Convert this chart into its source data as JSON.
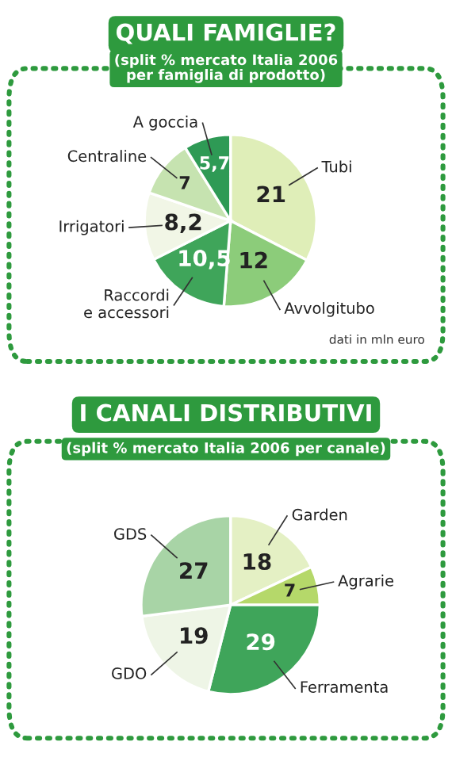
{
  "chart_data": [
    {
      "type": "pie",
      "title": "QUALI FAMIGLIE?",
      "subtitle": "(split % mercato Italia 2006\nper famiglia di prodotto)",
      "categories": [
        "Tubi",
        "Avvolgitubo",
        "Raccordi\ne accessori",
        "Irrigatori",
        "Centraline",
        "A goccia"
      ],
      "values": [
        21,
        12,
        10.5,
        8.2,
        7,
        5.7
      ],
      "value_labels": [
        "21",
        "12",
        "10,5",
        "8,2",
        "7",
        "5,7"
      ],
      "colors": [
        "#dfeeb8",
        "#8ccc7a",
        "#3fa55a",
        "#f1f6e6",
        "#c6e3b0",
        "#2e9a55"
      ],
      "annotations": [
        "dati in mln euro"
      ]
    },
    {
      "type": "pie",
      "title": "I CANALI DISTRIBUTIVI",
      "subtitle": "(split % mercato Italia 2006 per canale)",
      "categories": [
        "Garden",
        "Agrarie",
        "Ferramenta",
        "GDO",
        "GDS"
      ],
      "values": [
        18,
        7,
        29,
        19,
        27
      ],
      "colors": [
        "#e4f0c4",
        "#b5d86a",
        "#3fa55a",
        "#eef5e6",
        "#a8d4a6"
      ],
      "data_labels": true
    }
  ]
}
